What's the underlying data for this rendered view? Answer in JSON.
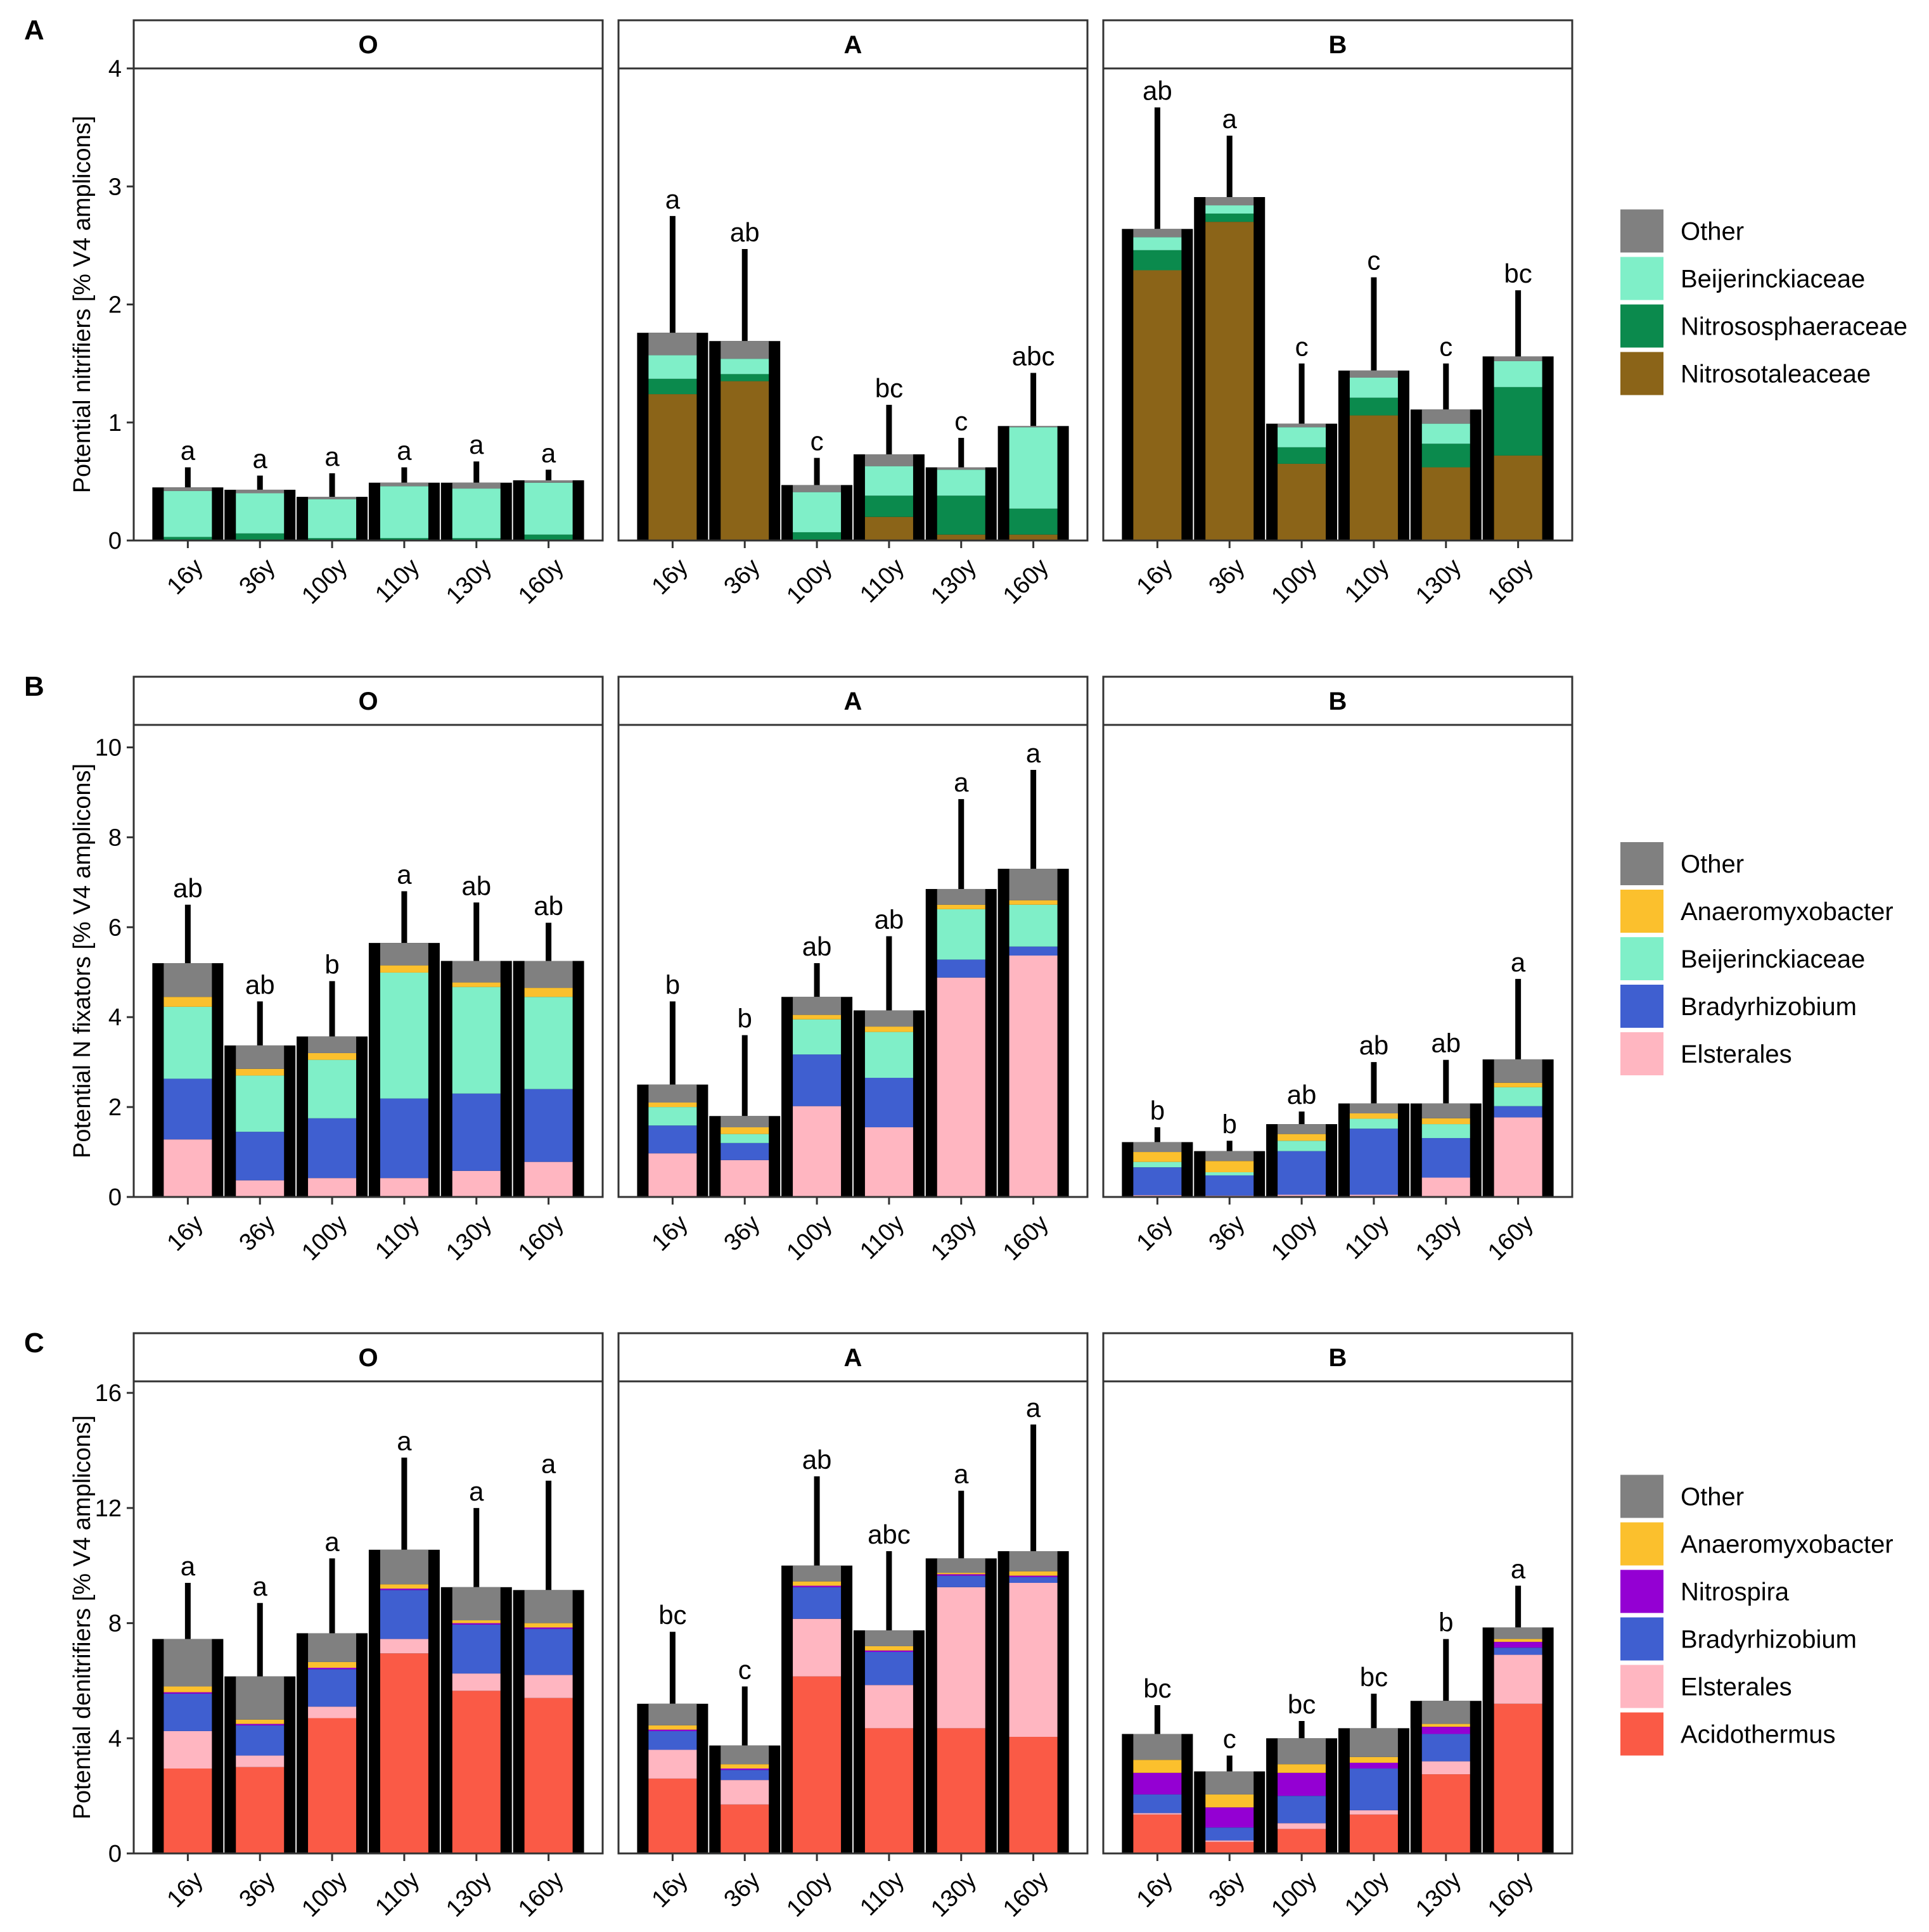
{
  "chart_data": {
    "type": "stacked-bar",
    "x_categories": [
      "16y",
      "36y",
      "100y",
      "110y",
      "130y",
      "160y"
    ],
    "facets": [
      "O",
      "A",
      "B"
    ],
    "panels": [
      {
        "label": "A",
        "ylabel": "Potential nitrifiers [% V4 amplicons]",
        "ylim": [
          0,
          4
        ],
        "yticks": [
          0,
          1,
          2,
          3,
          4
        ],
        "legend": [
          {
            "name": "Other",
            "color": "#808080"
          },
          {
            "name": "Beijerinckiaceae",
            "color": "#7FEFC8"
          },
          {
            "name": "Nitrososphaeraceae",
            "color": "#0B8A4D"
          },
          {
            "name": "Nitrosotaleaceae",
            "color": "#8B6418"
          }
        ],
        "stack_order": [
          "Nitrosotaleaceae",
          "Nitrososphaeraceae",
          "Beijerinckiaceae",
          "Other"
        ],
        "facet_data": {
          "O": {
            "totals": [
              0.45,
              0.43,
              0.37,
              0.49,
              0.49,
              0.51
            ],
            "error_tops": [
              0.62,
              0.55,
              0.57,
              0.62,
              0.67,
              0.6
            ],
            "letters": [
              "a",
              "a",
              "a",
              "a",
              "a",
              "a"
            ],
            "bars": [
              {
                "Nitrosotaleaceae": 0,
                "Nitrososphaeraceae": 0.03,
                "Beijerinckiaceae": 0.39,
                "Other": 0.03
              },
              {
                "Nitrosotaleaceae": 0,
                "Nitrososphaeraceae": 0.06,
                "Beijerinckiaceae": 0.34,
                "Other": 0.03
              },
              {
                "Nitrosotaleaceae": 0,
                "Nitrososphaeraceae": 0.02,
                "Beijerinckiaceae": 0.33,
                "Other": 0.02
              },
              {
                "Nitrosotaleaceae": 0,
                "Nitrososphaeraceae": 0.02,
                "Beijerinckiaceae": 0.44,
                "Other": 0.03
              },
              {
                "Nitrosotaleaceae": 0,
                "Nitrososphaeraceae": 0.02,
                "Beijerinckiaceae": 0.42,
                "Other": 0.05
              },
              {
                "Nitrosotaleaceae": 0,
                "Nitrososphaeraceae": 0.05,
                "Beijerinckiaceae": 0.44,
                "Other": 0.02
              }
            ]
          },
          "A": {
            "totals": [
              1.76,
              1.69,
              0.47,
              0.73,
              0.62,
              0.97
            ],
            "error_tops": [
              2.75,
              2.47,
              0.7,
              1.15,
              0.87,
              1.42
            ],
            "letters": [
              "a",
              "ab",
              "c",
              "bc",
              "c",
              "abc"
            ],
            "bars": [
              {
                "Nitrosotaleaceae": 1.24,
                "Nitrososphaeraceae": 0.13,
                "Beijerinckiaceae": 0.2,
                "Other": 0.19
              },
              {
                "Nitrosotaleaceae": 1.35,
                "Nitrososphaeraceae": 0.06,
                "Beijerinckiaceae": 0.13,
                "Other": 0.15
              },
              {
                "Nitrosotaleaceae": 0,
                "Nitrososphaeraceae": 0.07,
                "Beijerinckiaceae": 0.34,
                "Other": 0.06
              },
              {
                "Nitrosotaleaceae": 0.2,
                "Nitrososphaeraceae": 0.18,
                "Beijerinckiaceae": 0.25,
                "Other": 0.1
              },
              {
                "Nitrosotaleaceae": 0.05,
                "Nitrososphaeraceae": 0.33,
                "Beijerinckiaceae": 0.22,
                "Other": 0.02
              },
              {
                "Nitrosotaleaceae": 0.05,
                "Nitrososphaeraceae": 0.22,
                "Beijerinckiaceae": 0.69,
                "Other": 0.01
              }
            ]
          },
          "B": {
            "totals": [
              2.64,
              2.91,
              0.99,
              1.44,
              1.11,
              1.56
            ],
            "error_tops": [
              3.67,
              3.43,
              1.5,
              2.23,
              1.5,
              2.12
            ],
            "letters": [
              "ab",
              "a",
              "c",
              "c",
              "c",
              "bc"
            ],
            "bars": [
              {
                "Nitrosotaleaceae": 2.29,
                "Nitrososphaeraceae": 0.17,
                "Beijerinckiaceae": 0.11,
                "Other": 0.07
              },
              {
                "Nitrosotaleaceae": 2.7,
                "Nitrososphaeraceae": 0.07,
                "Beijerinckiaceae": 0.07,
                "Other": 0.07
              },
              {
                "Nitrosotaleaceae": 0.65,
                "Nitrososphaeraceae": 0.14,
                "Beijerinckiaceae": 0.17,
                "Other": 0.03
              },
              {
                "Nitrosotaleaceae": 1.06,
                "Nitrososphaeraceae": 0.15,
                "Beijerinckiaceae": 0.17,
                "Other": 0.06
              },
              {
                "Nitrosotaleaceae": 0.62,
                "Nitrososphaeraceae": 0.2,
                "Beijerinckiaceae": 0.17,
                "Other": 0.12
              },
              {
                "Nitrosotaleaceae": 0.72,
                "Nitrososphaeraceae": 0.58,
                "Beijerinckiaceae": 0.22,
                "Other": 0.04
              }
            ]
          }
        }
      },
      {
        "label": "B",
        "ylabel": "Potential N fixators [% V4 amplicons]",
        "ylim": [
          0,
          10.5
        ],
        "yticks": [
          0,
          2,
          4,
          6,
          8,
          10
        ],
        "legend": [
          {
            "name": "Other",
            "color": "#808080"
          },
          {
            "name": "Anaeromyxobacter",
            "color": "#FBC02D"
          },
          {
            "name": "Beijerinckiaceae",
            "color": "#7FEFC8"
          },
          {
            "name": "Bradyrhizobium",
            "color": "#3F5FD0"
          },
          {
            "name": "Elsterales",
            "color": "#FFB6C1"
          }
        ],
        "stack_order": [
          "Elsterales",
          "Bradyrhizobium",
          "Beijerinckiaceae",
          "Anaeromyxobacter",
          "Other"
        ],
        "facet_data": {
          "O": {
            "totals": [
              5.2,
              3.37,
              3.57,
              5.65,
              5.25,
              5.25
            ],
            "error_tops": [
              6.5,
              4.35,
              4.8,
              6.8,
              6.55,
              6.1
            ],
            "letters": [
              "ab",
              "ab",
              "b",
              "a",
              "ab",
              "ab"
            ],
            "bars": [
              {
                "Elsterales": 1.28,
                "Bradyrhizobium": 1.35,
                "Beijerinckiaceae": 1.6,
                "Anaeromyxobacter": 0.22,
                "Other": 0.75
              },
              {
                "Elsterales": 0.37,
                "Bradyrhizobium": 1.08,
                "Beijerinckiaceae": 1.25,
                "Anaeromyxobacter": 0.15,
                "Other": 0.52
              },
              {
                "Elsterales": 0.42,
                "Bradyrhizobium": 1.33,
                "Beijerinckiaceae": 1.3,
                "Anaeromyxobacter": 0.15,
                "Other": 0.37
              },
              {
                "Elsterales": 0.42,
                "Bradyrhizobium": 1.77,
                "Beijerinckiaceae": 2.8,
                "Anaeromyxobacter": 0.16,
                "Other": 0.5
              },
              {
                "Elsterales": 0.58,
                "Bradyrhizobium": 1.72,
                "Beijerinckiaceae": 2.37,
                "Anaeromyxobacter": 0.1,
                "Other": 0.48
              },
              {
                "Elsterales": 0.78,
                "Bradyrhizobium": 1.62,
                "Beijerinckiaceae": 2.05,
                "Anaeromyxobacter": 0.2,
                "Other": 0.6
              }
            ]
          },
          "A": {
            "totals": [
              2.5,
              1.8,
              4.45,
              4.15,
              6.85,
              7.3
            ],
            "error_tops": [
              4.35,
              3.6,
              5.2,
              5.8,
              8.85,
              9.5
            ],
            "letters": [
              "b",
              "b",
              "ab",
              "ab",
              "a",
              "a"
            ],
            "bars": [
              {
                "Elsterales": 0.97,
                "Bradyrhizobium": 0.62,
                "Beijerinckiaceae": 0.41,
                "Anaeromyxobacter": 0.1,
                "Other": 0.4
              },
              {
                "Elsterales": 0.82,
                "Bradyrhizobium": 0.38,
                "Beijerinckiaceae": 0.2,
                "Anaeromyxobacter": 0.15,
                "Other": 0.25
              },
              {
                "Elsterales": 2.02,
                "Bradyrhizobium": 1.15,
                "Beijerinckiaceae": 0.78,
                "Anaeromyxobacter": 0.1,
                "Other": 0.4
              },
              {
                "Elsterales": 1.55,
                "Bradyrhizobium": 1.1,
                "Beijerinckiaceae": 1.02,
                "Anaeromyxobacter": 0.12,
                "Other": 0.36
              },
              {
                "Elsterales": 4.88,
                "Bradyrhizobium": 0.4,
                "Beijerinckiaceae": 1.12,
                "Anaeromyxobacter": 0.1,
                "Other": 0.35
              },
              {
                "Elsterales": 5.37,
                "Bradyrhizobium": 0.2,
                "Beijerinckiaceae": 0.93,
                "Anaeromyxobacter": 0.1,
                "Other": 0.7
              }
            ]
          },
          "B": {
            "totals": [
              1.22,
              1.02,
              1.62,
              2.08,
              2.08,
              3.06
            ],
            "error_tops": [
              1.55,
              1.25,
              1.9,
              3.0,
              3.05,
              4.85
            ],
            "letters": [
              "b",
              "b",
              "ab",
              "ab",
              "ab",
              "a"
            ],
            "bars": [
              {
                "Elsterales": 0.04,
                "Bradyrhizobium": 0.62,
                "Beijerinckiaceae": 0.12,
                "Anaeromyxobacter": 0.22,
                "Other": 0.22
              },
              {
                "Elsterales": 0.03,
                "Bradyrhizobium": 0.45,
                "Beijerinckiaceae": 0.07,
                "Anaeromyxobacter": 0.25,
                "Other": 0.22
              },
              {
                "Elsterales": 0.05,
                "Bradyrhizobium": 0.97,
                "Beijerinckiaceae": 0.23,
                "Anaeromyxobacter": 0.15,
                "Other": 0.22
              },
              {
                "Elsterales": 0.05,
                "Bradyrhizobium": 1.47,
                "Beijerinckiaceae": 0.22,
                "Anaeromyxobacter": 0.12,
                "Other": 0.22
              },
              {
                "Elsterales": 0.43,
                "Bradyrhizobium": 0.88,
                "Beijerinckiaceae": 0.31,
                "Anaeromyxobacter": 0.13,
                "Other": 0.33
              },
              {
                "Elsterales": 1.77,
                "Bradyrhizobium": 0.25,
                "Beijerinckiaceae": 0.42,
                "Anaeromyxobacter": 0.1,
                "Other": 0.52
              }
            ]
          }
        }
      },
      {
        "label": "C",
        "ylabel": "Potential denitrifiers [% V4 amplicons]",
        "ylim": [
          0,
          16.4
        ],
        "yticks": [
          0,
          4,
          8,
          12,
          16
        ],
        "legend": [
          {
            "name": "Other",
            "color": "#808080"
          },
          {
            "name": "Anaeromyxobacter",
            "color": "#FBC02D"
          },
          {
            "name": "Nitrospira",
            "color": "#9400D3"
          },
          {
            "name": "Bradyrhizobium",
            "color": "#3F5FD0"
          },
          {
            "name": "Elsterales",
            "color": "#FFB6C1"
          },
          {
            "name": "Acidothermus",
            "color": "#FA5A46"
          }
        ],
        "stack_order": [
          "Acidothermus",
          "Elsterales",
          "Bradyrhizobium",
          "Nitrospira",
          "Anaeromyxobacter",
          "Other"
        ],
        "facet_data": {
          "O": {
            "totals": [
              7.45,
              6.15,
              7.65,
              10.55,
              9.25,
              9.15
            ],
            "error_tops": [
              9.4,
              8.7,
              10.25,
              13.75,
              12.0,
              12.95
            ],
            "letters": [
              "a",
              "a",
              "a",
              "a",
              "a",
              "a"
            ],
            "bars": [
              {
                "Acidothermus": 2.95,
                "Elsterales": 1.3,
                "Bradyrhizobium": 1.3,
                "Nitrospira": 0.05,
                "Anaeromyxobacter": 0.2,
                "Other": 1.65
              },
              {
                "Acidothermus": 3.0,
                "Elsterales": 0.4,
                "Bradyrhizobium": 1.05,
                "Nitrospira": 0.05,
                "Anaeromyxobacter": 0.15,
                "Other": 1.5
              },
              {
                "Acidothermus": 4.7,
                "Elsterales": 0.4,
                "Bradyrhizobium": 1.3,
                "Nitrospira": 0.05,
                "Anaeromyxobacter": 0.2,
                "Other": 1.0
              },
              {
                "Acidothermus": 6.95,
                "Elsterales": 0.5,
                "Bradyrhizobium": 1.7,
                "Nitrospira": 0.05,
                "Anaeromyxobacter": 0.15,
                "Other": 1.2
              },
              {
                "Acidothermus": 5.65,
                "Elsterales": 0.6,
                "Bradyrhizobium": 1.7,
                "Nitrospira": 0.05,
                "Anaeromyxobacter": 0.1,
                "Other": 1.15
              },
              {
                "Acidothermus": 5.4,
                "Elsterales": 0.8,
                "Bradyrhizobium": 1.6,
                "Nitrospira": 0.05,
                "Anaeromyxobacter": 0.15,
                "Other": 1.15
              }
            ]
          },
          "A": {
            "totals": [
              5.2,
              3.75,
              10.0,
              7.75,
              10.25,
              10.5
            ],
            "error_tops": [
              7.7,
              5.8,
              13.1,
              10.5,
              12.6,
              14.9
            ],
            "letters": [
              "bc",
              "c",
              "ab",
              "abc",
              "a",
              "a"
            ],
            "bars": [
              {
                "Acidothermus": 2.6,
                "Elsterales": 1.0,
                "Bradyrhizobium": 0.65,
                "Nitrospira": 0.05,
                "Anaeromyxobacter": 0.15,
                "Other": 0.75
              },
              {
                "Acidothermus": 1.7,
                "Elsterales": 0.85,
                "Bradyrhizobium": 0.35,
                "Nitrospira": 0.05,
                "Anaeromyxobacter": 0.15,
                "Other": 0.65
              },
              {
                "Acidothermus": 6.15,
                "Elsterales": 2.0,
                "Bradyrhizobium": 1.1,
                "Nitrospira": 0.05,
                "Anaeromyxobacter": 0.15,
                "Other": 0.55
              },
              {
                "Acidothermus": 4.35,
                "Elsterales": 1.5,
                "Bradyrhizobium": 1.15,
                "Nitrospira": 0.05,
                "Anaeromyxobacter": 0.15,
                "Other": 0.55
              },
              {
                "Acidothermus": 4.35,
                "Elsterales": 4.9,
                "Bradyrhizobium": 0.4,
                "Nitrospira": 0.05,
                "Anaeromyxobacter": 0.05,
                "Other": 0.5
              },
              {
                "Acidothermus": 4.05,
                "Elsterales": 5.35,
                "Bradyrhizobium": 0.2,
                "Nitrospira": 0.05,
                "Anaeromyxobacter": 0.15,
                "Other": 0.7
              }
            ]
          },
          "B": {
            "totals": [
              4.15,
              2.85,
              4.0,
              4.35,
              5.3,
              7.85
            ],
            "error_tops": [
              5.15,
              3.4,
              4.6,
              5.55,
              7.45,
              9.3
            ],
            "letters": [
              "bc",
              "c",
              "bc",
              "bc",
              "b",
              "a"
            ],
            "bars": [
              {
                "Acidothermus": 1.35,
                "Elsterales": 0.05,
                "Bradyrhizobium": 0.65,
                "Nitrospira": 0.75,
                "Anaeromyxobacter": 0.45,
                "Other": 0.9
              },
              {
                "Acidothermus": 0.4,
                "Elsterales": 0.05,
                "Bradyrhizobium": 0.45,
                "Nitrospira": 0.7,
                "Anaeromyxobacter": 0.45,
                "Other": 0.8
              },
              {
                "Acidothermus": 0.85,
                "Elsterales": 0.2,
                "Bradyrhizobium": 0.95,
                "Nitrospira": 0.8,
                "Anaeromyxobacter": 0.3,
                "Other": 0.9
              },
              {
                "Acidothermus": 1.35,
                "Elsterales": 0.15,
                "Bradyrhizobium": 1.45,
                "Nitrospira": 0.2,
                "Anaeromyxobacter": 0.2,
                "Other": 1.0
              },
              {
                "Acidothermus": 2.75,
                "Elsterales": 0.45,
                "Bradyrhizobium": 0.95,
                "Nitrospira": 0.25,
                "Anaeromyxobacter": 0.1,
                "Other": 0.8
              },
              {
                "Acidothermus": 5.2,
                "Elsterales": 1.7,
                "Bradyrhizobium": 0.25,
                "Nitrospira": 0.2,
                "Anaeromyxobacter": 0.1,
                "Other": 0.4
              }
            ]
          }
        }
      }
    ]
  }
}
